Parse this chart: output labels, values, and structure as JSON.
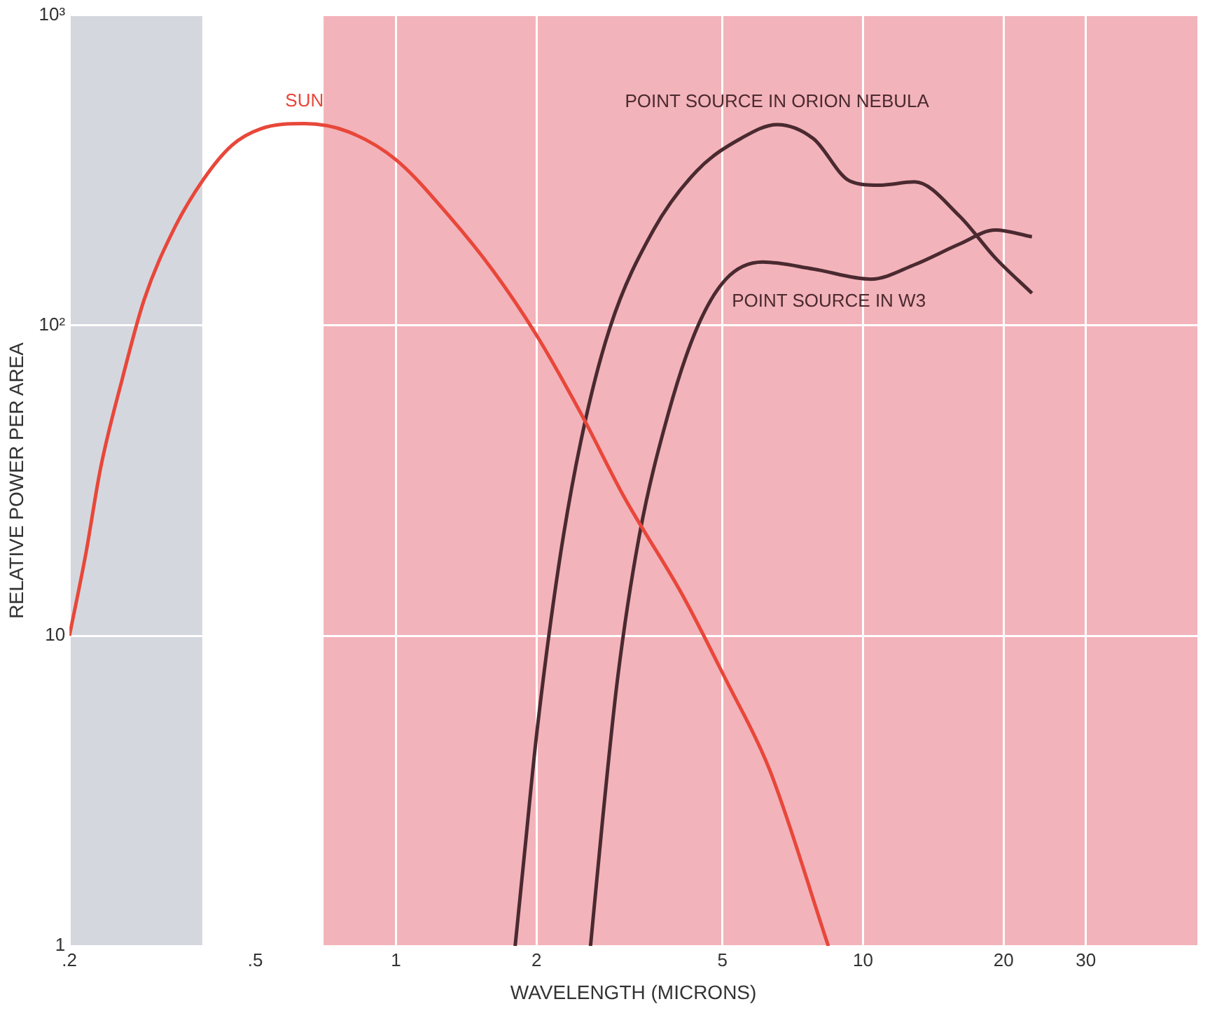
{
  "chart_data": {
    "type": "line",
    "xlabel": "WAVELENGTH (MICRONS)",
    "ylabel": "RELATIVE POWER PER AREA",
    "log": "xy",
    "xlim": [
      0.2,
      52
    ],
    "ylim": [
      1,
      1000
    ],
    "xticks": [
      {
        "value": 0.2,
        "label": ".2"
      },
      {
        "value": 0.5,
        "label": ".5"
      },
      1,
      2,
      5,
      10,
      20,
      30
    ],
    "yticks": [
      1,
      10,
      {
        "value": 100,
        "label": "10²"
      },
      {
        "value": 1000,
        "label": "10³"
      }
    ],
    "grid": true,
    "legend": false,
    "marker": "none",
    "line_style": "solid",
    "bands": [
      {
        "axis": "x",
        "from": 0.2,
        "to": 0.385,
        "color": "#d5d7de"
      },
      {
        "axis": "x",
        "from": 0.7,
        "to": 52,
        "color": "#f3b3ba"
      }
    ],
    "series": [
      {
        "name": "SUN",
        "color": "#e8473a",
        "x": [
          0.2,
          0.217,
          0.233,
          0.26,
          0.289,
          0.334,
          0.385,
          0.445,
          0.513,
          0.637,
          0.79,
          1,
          1.3,
          1.62,
          2,
          2.49,
          3.08,
          4.11,
          5.09,
          6.31,
          8.43
        ],
        "values": [
          10,
          18.5,
          34.5,
          68,
          121,
          203,
          292,
          380,
          430,
          447,
          421,
          342,
          225,
          149,
          93,
          52,
          28,
          13.5,
          7.2,
          3.7,
          1
        ]
      },
      {
        "name": "POINT SOURCE IN ORION NEBULA",
        "color": "#4a2a30",
        "x": [
          1.8,
          1.89,
          2,
          2.23,
          2.49,
          2.87,
          3.56,
          4.41,
          5.47,
          6.55,
          7.83,
          9.37,
          10.8,
          12.9,
          16.1,
          19.2,
          23
        ],
        "values": [
          1,
          2.07,
          4.77,
          16.7,
          42.5,
          98,
          203,
          315,
          400,
          444,
          400,
          292,
          283,
          290,
          225,
          165,
          127
        ]
      },
      {
        "name": "POINT SOURCE IN W3",
        "color": "#4a2a30",
        "x": [
          2.61,
          2.77,
          2.98,
          3.31,
          3.83,
          4.41,
          5.09,
          6.1,
          7.83,
          10.4,
          12.9,
          16.1,
          19.2,
          23
        ],
        "values": [
          1,
          2.55,
          7.2,
          20.5,
          52,
          98,
          141,
          160,
          152,
          141,
          157,
          183,
          203,
          193
        ]
      }
    ]
  }
}
